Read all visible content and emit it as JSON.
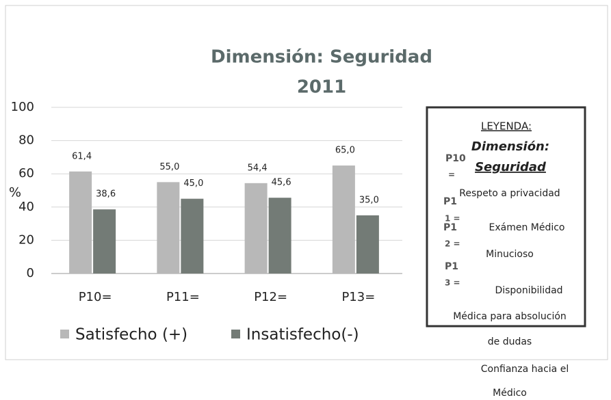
{
  "chart_data": {
    "type": "bar",
    "title": "Dimensión: Seguridad",
    "subtitle": "2011",
    "ylabel": "%",
    "categories": [
      "P10=",
      "P11=",
      "P12=",
      "P13="
    ],
    "series": [
      {
        "name": "Satisfecho (+)",
        "color": "#b8b8b8",
        "values": [
          61.4,
          55.0,
          54.4,
          65.0
        ],
        "value_labels": [
          "61,4",
          "55,0",
          "54,4",
          "65,0"
        ]
      },
      {
        "name": "Insatisfecho(-)",
        "color": "#737b76",
        "values": [
          38.6,
          45.0,
          45.6,
          35.0
        ],
        "value_labels": [
          "38,6",
          "45,0",
          "45,6",
          "35,0"
        ]
      }
    ],
    "ylim": [
      0,
      100
    ],
    "yticks": [
      0,
      20,
      40,
      60,
      80,
      100
    ],
    "grid": true,
    "legend": "bottom"
  },
  "legend_box": {
    "heading": "LEYENDA:",
    "subheading": [
      "Dimensión:",
      "Seguridad"
    ],
    "keys": [
      [
        "P10",
        "="
      ],
      [
        "P1",
        "1 ="
      ],
      [
        "P1",
        "2 ="
      ],
      [
        "P1",
        "3 ="
      ]
    ],
    "descriptions": [
      "Respeto a privacidad",
      "Exámen Médico",
      "Minucioso",
      "Disponibilidad",
      "Médica para absolución",
      "de dudas",
      "Confianza hacia el",
      "Médico"
    ]
  }
}
